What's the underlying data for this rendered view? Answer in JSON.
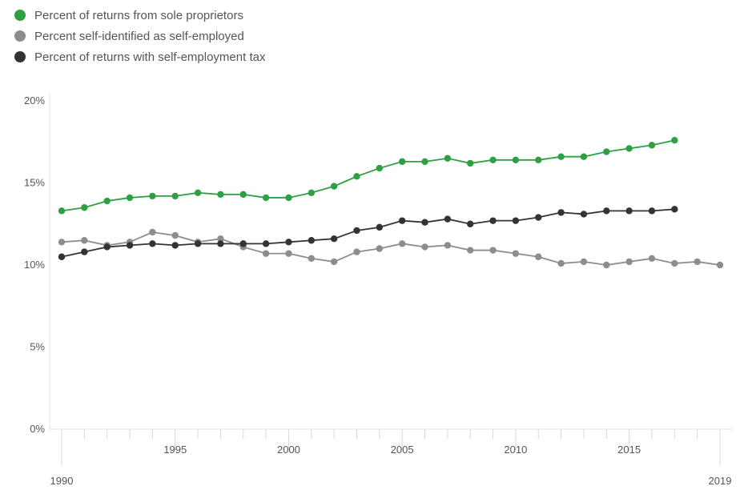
{
  "chart_data": {
    "type": "line",
    "x": [
      1990,
      1991,
      1992,
      1993,
      1994,
      1995,
      1996,
      1997,
      1998,
      1999,
      2000,
      2001,
      2002,
      2003,
      2004,
      2005,
      2006,
      2007,
      2008,
      2009,
      2010,
      2011,
      2012,
      2013,
      2014,
      2015,
      2016,
      2017,
      2018,
      2019
    ],
    "series": [
      {
        "name": "Percent of returns from sole proprietors",
        "color": "#2ea043",
        "values": [
          13.3,
          13.5,
          13.9,
          14.1,
          14.2,
          14.2,
          14.4,
          14.3,
          14.3,
          14.1,
          14.1,
          14.4,
          14.8,
          15.4,
          15.9,
          16.3,
          16.3,
          16.5,
          16.2,
          16.4,
          16.4,
          16.4,
          16.6,
          16.6,
          16.9,
          17.1,
          17.3,
          17.6,
          null,
          null
        ]
      },
      {
        "name": "Percent self-identified as self-employed",
        "color": "#8c8c91",
        "values": [
          11.4,
          11.5,
          11.2,
          11.4,
          12.0,
          11.8,
          11.4,
          11.6,
          11.1,
          10.7,
          10.7,
          10.4,
          10.2,
          10.8,
          11.0,
          11.3,
          11.1,
          11.2,
          10.9,
          10.9,
          10.7,
          10.5,
          10.1,
          10.2,
          10.0,
          10.2,
          10.4,
          10.1,
          10.2,
          10.0
        ]
      },
      {
        "name": "Percent of returns with self-employment tax",
        "color": "#333333",
        "values": [
          10.5,
          10.8,
          11.1,
          11.2,
          11.3,
          11.2,
          11.3,
          11.3,
          11.3,
          11.3,
          11.4,
          11.5,
          11.6,
          12.1,
          12.3,
          12.7,
          12.6,
          12.8,
          12.5,
          12.7,
          12.7,
          12.9,
          13.2,
          13.1,
          13.3,
          13.3,
          13.3,
          13.4,
          null,
          null
        ]
      }
    ],
    "y_ticks": [
      "0%",
      "5%",
      "10%",
      "15%",
      "20%"
    ],
    "y_tick_values": [
      0,
      5,
      10,
      15,
      20
    ],
    "x_tick_labels": [
      {
        "year": 1990,
        "label": "1990"
      },
      {
        "year": 1995,
        "label": "1995"
      },
      {
        "year": 2000,
        "label": "2000"
      },
      {
        "year": 2005,
        "label": "2005"
      },
      {
        "year": 2010,
        "label": "2010"
      },
      {
        "year": 2015,
        "label": "2015"
      },
      {
        "year": 2019,
        "label": "2019"
      }
    ],
    "ylim": [
      0,
      20
    ],
    "xlim": [
      1990,
      2019
    ],
    "grid": false,
    "legend_position": "top-left"
  }
}
